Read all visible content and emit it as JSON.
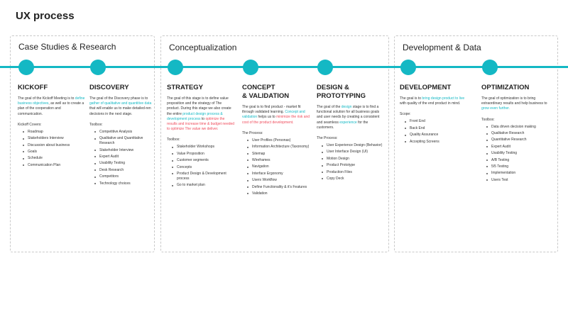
{
  "title": "UX process",
  "groups": [
    {
      "title": "Case Studies & Research"
    },
    {
      "title": "Conceptualization"
    },
    {
      "title": "Development & Data"
    }
  ],
  "stages": [
    {
      "title": "KICKOFF",
      "desc_pre": "The goal of the Kickoff Meeting is to ",
      "desc_hl": "define business objectives",
      "desc_post": ", as well as to create a plan of the cooperation and communication.",
      "list_label": "Kickoff Covers:",
      "items": [
        "Roadmap",
        "Stakeholders Interview",
        "Discussion about business",
        "Goals",
        "Schedule",
        "Communication Plan"
      ]
    },
    {
      "title": "DISCOVERY",
      "desc_pre": "The goal of the Discovery phase is to ",
      "desc_hl": "gather of qualitative and quantitive data",
      "desc_post": " that will enable us to make detailed-ren decisions in the next stage.",
      "list_label": "Toolbox:",
      "items": [
        "Competitive Analysis",
        "Qualitative and Quantitative Research",
        "Stakeholder Interview",
        "Expert Audit",
        "Usability Testing",
        "Desk Research",
        "Competitors",
        "Technology choices"
      ]
    },
    {
      "title": "STRATEGY",
      "desc_pre": "The goal of this stage is to define value proposition and the strategy of The product. During this stage we also create the entire ",
      "desc_hl": "product design process & development process",
      "desc_mid": " to ",
      "desc_hl2": "optimize the results and increase time & budget needed to optimize The value we deliver.",
      "list_label": "Toolbox:",
      "items": [
        "Stakeholder Workshops",
        "Value Proposition",
        "Customer segments",
        "Concepts",
        "Product Design & Development process",
        "Go to market plan"
      ]
    },
    {
      "title_line1": "CONCEPT",
      "title_line2": "& VALIDATION",
      "desc_pre": "The goal is to find product - market fit through validated learning. ",
      "desc_hl": "Concept and validation",
      "desc_mid": " helps us to ",
      "desc_hl2": "minimize the risk and cost of the product development.",
      "list_label": "The Process:",
      "items": [
        "User Profiles (Personas)",
        "Information Architecture (Taxonomy)",
        "Sitemap",
        "Wireframes",
        "Navigation",
        "Interface Ergonomy",
        "Users Workflow",
        "Define Functionality & it's Features",
        "Validation"
      ]
    },
    {
      "title_line1": "DESIGN &",
      "title_line2": "PROTOTYPING",
      "desc_pre": "The goal of the ",
      "desc_hl": "design",
      "desc_post": " stage is to find a functional solution for all business goals and user needs by creating a consistent and seamless ",
      "desc_hl2": "experience",
      "desc_post2": " for the customers.",
      "list_label": "The Process:",
      "items": [
        "User Experience Design (Behavior)",
        "User Interface Design (UI)",
        "Motion Design",
        "Product Prototype",
        "Production Files",
        "Copy Deck"
      ]
    },
    {
      "title": "DEVELOPMENT",
      "desc_pre": "The goal is to ",
      "desc_hl": "bring design product to live",
      "desc_post": " with quality of the end product in mind.",
      "list_label": "Scope:",
      "items": [
        "Front  End",
        "Back End",
        "Quality Assurance",
        "Accepting  Screens"
      ]
    },
    {
      "title": "OPTIMIZATION",
      "desc_pre": "The goal of optimization is to bring extraordinary results and help business to ",
      "desc_hl": "grow even further.",
      "desc_post": "",
      "list_label": "Toolbox:",
      "items": [
        "Data driven decision making",
        "Qualitative Research",
        "Quantitative Research",
        "Expert Audit",
        "Usability Testing",
        "A/B Testing",
        "5/5 Testing",
        "Implementation",
        "Users Test"
      ]
    }
  ],
  "colors": {
    "accent": "#14b8c4",
    "highlight_red": "#ef4b5b"
  }
}
